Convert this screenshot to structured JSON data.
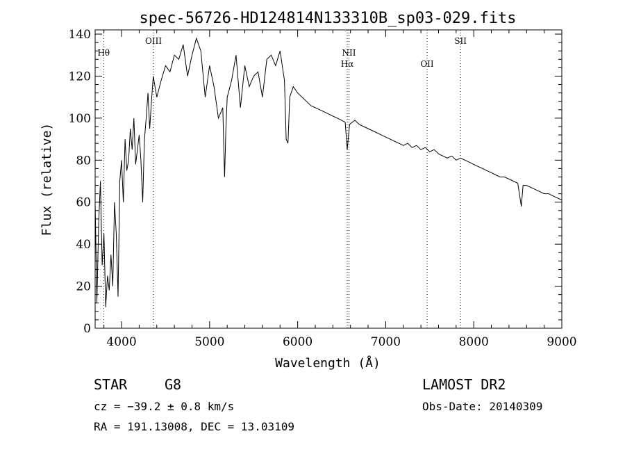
{
  "chart_data": {
    "type": "line",
    "title": "spec-56726-HD124814N133310B_sp03-029.fits",
    "xlabel": "Wavelength (Å)",
    "ylabel": "Flux (relative)",
    "xlim": [
      3700,
      9000
    ],
    "ylim": [
      0,
      142
    ],
    "xticks": [
      4000,
      5000,
      6000,
      7000,
      8000,
      9000
    ],
    "yticks": [
      0,
      20,
      40,
      60,
      80,
      100,
      120,
      140
    ],
    "grid": false,
    "line_color": "#000000",
    "spectral_lines": [
      {
        "label": "Hθ",
        "wavelength": 3797,
        "label_row": "upper"
      },
      {
        "label": "OIII",
        "wavelength": 4363,
        "label_row": "top"
      },
      {
        "label": "NII",
        "wavelength": 6583,
        "label_row": "upper"
      },
      {
        "label": "Hα",
        "wavelength": 6563,
        "label_row": "lower"
      },
      {
        "label": "OII",
        "wavelength": 7470,
        "label_row": "lower"
      },
      {
        "label": "SII",
        "wavelength": 7850,
        "label_row": "top"
      }
    ],
    "series": [
      {
        "x": [
          3700,
          3720,
          3740,
          3760,
          3780,
          3800,
          3820,
          3840,
          3860,
          3880,
          3900,
          3920,
          3940,
          3960,
          3980,
          4000,
          4020,
          4040,
          4060,
          4080,
          4100,
          4120,
          4140,
          4160,
          4180,
          4200,
          4220,
          4240,
          4260,
          4280,
          4300,
          4320,
          4340,
          4360,
          4380,
          4400,
          4450,
          4500,
          4550,
          4600,
          4650,
          4700,
          4750,
          4800,
          4850,
          4900,
          4950,
          5000,
          5050,
          5100,
          5150,
          5170,
          5185,
          5200,
          5250,
          5300,
          5350,
          5400,
          5450,
          5500,
          5550,
          5600,
          5650,
          5700,
          5750,
          5800,
          5850,
          5870,
          5890,
          5910,
          5950,
          6000,
          6050,
          6100,
          6150,
          6200,
          6250,
          6300,
          6350,
          6400,
          6450,
          6500,
          6540,
          6563,
          6590,
          6620,
          6650,
          6700,
          6750,
          6800,
          6850,
          6900,
          6950,
          7000,
          7050,
          7100,
          7150,
          7200,
          7250,
          7300,
          7350,
          7400,
          7450,
          7500,
          7550,
          7600,
          7650,
          7700,
          7750,
          7800,
          7850,
          7900,
          7950,
          8000,
          8050,
          8100,
          8150,
          8200,
          8250,
          8300,
          8350,
          8400,
          8450,
          8500,
          8540,
          8560,
          8600,
          8650,
          8700,
          8750,
          8800,
          8850,
          8900,
          8950,
          9000
        ],
        "values": [
          60,
          12,
          50,
          70,
          30,
          45,
          10,
          25,
          18,
          35,
          20,
          60,
          45,
          15,
          70,
          80,
          60,
          90,
          75,
          80,
          95,
          85,
          100,
          78,
          85,
          92,
          80,
          60,
          90,
          100,
          112,
          95,
          108,
          120,
          115,
          110,
          118,
          125,
          122,
          130,
          128,
          135,
          120,
          130,
          138,
          132,
          110,
          125,
          115,
          100,
          105,
          72,
          95,
          110,
          118,
          130,
          105,
          125,
          115,
          120,
          122,
          110,
          128,
          130,
          125,
          132,
          118,
          90,
          88,
          110,
          115,
          112,
          110,
          108,
          106,
          105,
          104,
          103,
          102,
          101,
          100,
          99,
          98,
          85,
          97,
          98,
          99,
          97,
          96,
          95,
          94,
          93,
          92,
          91,
          90,
          89,
          88,
          87,
          88,
          86,
          87,
          85,
          86,
          84,
          85,
          83,
          82,
          81,
          82,
          80,
          81,
          80,
          79,
          78,
          77,
          76,
          75,
          74,
          73,
          72,
          72,
          71,
          70,
          69,
          58,
          68,
          68,
          67,
          66,
          65,
          64,
          64,
          63,
          62,
          61
        ]
      }
    ]
  },
  "info": {
    "object_class": "STAR",
    "subclass": "G8",
    "survey": "LAMOST DR2",
    "redshift": "cz = −39.2 ± 0.8 km/s",
    "obs_date": "Obs-Date: 20140309",
    "coords": "RA = 191.13008, DEC =  13.03109"
  }
}
